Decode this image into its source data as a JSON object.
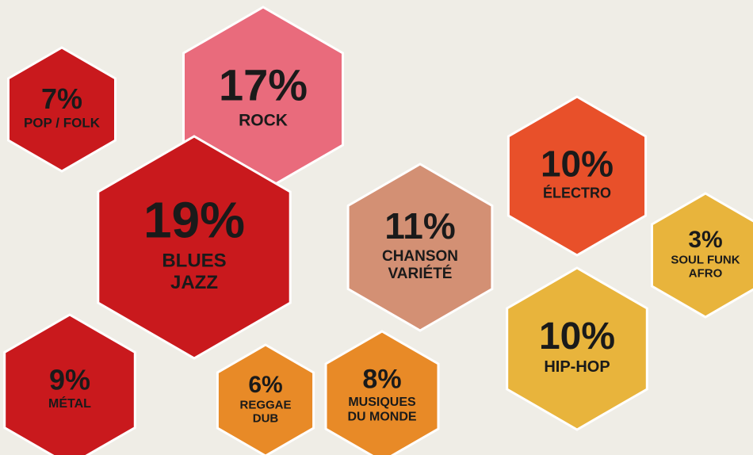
{
  "chart_data": {
    "type": "hexagon",
    "categories": [
      [
        "POP / FOLK"
      ],
      [
        "ROCK"
      ],
      [
        "BLUES",
        "JAZZ"
      ],
      [
        "CHANSON",
        "VARIÉTÉ"
      ],
      [
        "ÉLECTRO"
      ],
      [
        "SOUL FUNK",
        "AFRO"
      ],
      [
        "HIP-HOP"
      ],
      [
        "MÉTAL"
      ],
      [
        "REGGAE",
        "DUB"
      ],
      [
        "MUSIQUES",
        "DU MONDE"
      ]
    ],
    "values": [
      7,
      17,
      19,
      11,
      10,
      3,
      10,
      9,
      6,
      8
    ],
    "value_labels": [
      "7%",
      "17%",
      "19%",
      "11%",
      "10%",
      "3%",
      "10%",
      "9%",
      "6%",
      "8%"
    ],
    "colors": [
      "#c9191d",
      "#e96b7c",
      "#c9191d",
      "#d39074",
      "#e8502a",
      "#e8b43c",
      "#e8b43c",
      "#c9191d",
      "#e88a27",
      "#e88a27"
    ]
  }
}
